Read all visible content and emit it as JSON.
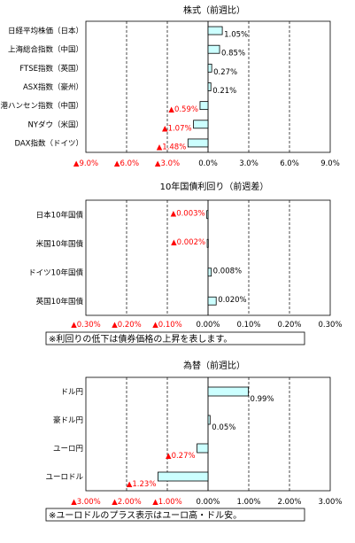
{
  "colors": {
    "negative": "#ff0000",
    "positive": "#000000",
    "bar_fill": "#ccffff",
    "bar_stroke": "#000000"
  },
  "chart_data": [
    {
      "type": "bar",
      "orientation": "horizontal",
      "title": "株式（前週比）",
      "xlim": [
        -9,
        9
      ],
      "ticks": [
        {
          "v": -9,
          "label": "▲9.0%"
        },
        {
          "v": -6,
          "label": "▲6.0%"
        },
        {
          "v": -3,
          "label": "▲3.0%"
        },
        {
          "v": 0,
          "label": "0.0%"
        },
        {
          "v": 3,
          "label": "3.0%"
        },
        {
          "v": 6,
          "label": "6.0%"
        },
        {
          "v": 9,
          "label": "9.0%"
        }
      ],
      "categories": [
        "日経平均株価（日本）",
        "上海総合指数（中国）",
        "FTSE指数（英国）",
        "ASX指数（豪州）",
        "香港ハンセン指数（中国）",
        "NYダウ（米国）",
        "DAX指数（ドイツ）"
      ],
      "values": [
        1.05,
        0.85,
        0.27,
        0.21,
        -0.59,
        -1.07,
        -1.48
      ],
      "labels": [
        "1.05%",
        "0.85%",
        "0.27%",
        "0.21%",
        "▲0.59%",
        "▲1.07%",
        "▲1.48%"
      ],
      "note": ""
    },
    {
      "type": "bar",
      "orientation": "horizontal",
      "title": "10年国債利回り（前週差）",
      "xlim": [
        -0.3,
        0.3
      ],
      "ticks": [
        {
          "v": -0.3,
          "label": "▲0.30%"
        },
        {
          "v": -0.2,
          "label": "▲0.20%"
        },
        {
          "v": -0.1,
          "label": "▲0.10%"
        },
        {
          "v": 0,
          "label": "0.00%"
        },
        {
          "v": 0.1,
          "label": "0.10%"
        },
        {
          "v": 0.2,
          "label": "0.20%"
        },
        {
          "v": 0.3,
          "label": "0.30%"
        }
      ],
      "categories": [
        "日本10年国債",
        "米国10年国債",
        "ドイツ10年国債",
        "英国10年国債"
      ],
      "values": [
        -0.003,
        -0.002,
        0.008,
        0.02
      ],
      "labels": [
        "▲0.003%",
        "▲0.002%",
        "0.008%",
        "0.020%"
      ],
      "note": "※利回りの低下は債券価格の上昇を表します。"
    },
    {
      "type": "bar",
      "orientation": "horizontal",
      "title": "為替（前週比）",
      "xlim": [
        -3,
        3
      ],
      "ticks": [
        {
          "v": -3,
          "label": "▲3.00%"
        },
        {
          "v": -2,
          "label": "▲2.00%"
        },
        {
          "v": -1,
          "label": "▲1.00%"
        },
        {
          "v": 0,
          "label": "0.00%"
        },
        {
          "v": 1,
          "label": "1.00%"
        },
        {
          "v": 2,
          "label": "2.00%"
        },
        {
          "v": 3,
          "label": "3.00%"
        }
      ],
      "categories": [
        "ドル円",
        "豪ドル円",
        "ユーロ円",
        "ユーロドル"
      ],
      "values": [
        0.99,
        0.05,
        -0.27,
        -1.23
      ],
      "labels": [
        "0.99%",
        "0.05%",
        "▲0.27%",
        "▲1.23%"
      ],
      "note": "※ユーロドルのプラス表示はユーロ高・ドル安。"
    }
  ]
}
